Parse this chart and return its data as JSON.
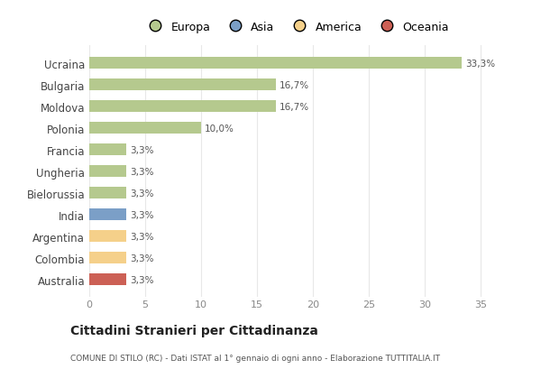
{
  "countries": [
    "Ucraina",
    "Bulgaria",
    "Moldova",
    "Polonia",
    "Francia",
    "Ungheria",
    "Bielorussia",
    "India",
    "Argentina",
    "Colombia",
    "Australia"
  ],
  "values": [
    33.3,
    16.7,
    16.7,
    10.0,
    3.3,
    3.3,
    3.3,
    3.3,
    3.3,
    3.3,
    3.3
  ],
  "labels": [
    "33,3%",
    "16,7%",
    "16,7%",
    "10,0%",
    "3,3%",
    "3,3%",
    "3,3%",
    "3,3%",
    "3,3%",
    "3,3%",
    "3,3%"
  ],
  "colors": [
    "#b5c98e",
    "#b5c98e",
    "#b5c98e",
    "#b5c98e",
    "#b5c98e",
    "#b5c98e",
    "#b5c98e",
    "#7b9fc7",
    "#f5d08a",
    "#f5d08a",
    "#cc6055"
  ],
  "legend_labels": [
    "Europa",
    "Asia",
    "America",
    "Oceania"
  ],
  "legend_colors": [
    "#b5c98e",
    "#7b9fc7",
    "#f5d08a",
    "#cc6055"
  ],
  "title": "Cittadini Stranieri per Cittadinanza",
  "subtitle": "COMUNE DI STILO (RC) - Dati ISTAT al 1° gennaio di ogni anno - Elaborazione TUTTITALIA.IT",
  "xlim": [
    0,
    37
  ],
  "xticks": [
    0,
    5,
    10,
    15,
    20,
    25,
    30,
    35
  ],
  "background_color": "#ffffff",
  "grid_color": "#e8e8e8",
  "bar_height": 0.55
}
